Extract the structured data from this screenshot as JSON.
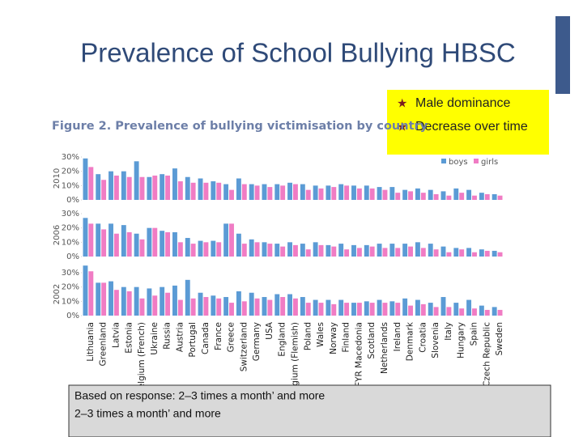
{
  "slide_title": "Prevalence of School Bullying HBSC",
  "bullets": [
    "Male dominance",
    "Decrease over time"
  ],
  "note_lines": [
    "Based on response: 2–3 times a month’ and more",
    "2–3 times a month’ and more"
  ],
  "chart_data": {
    "type": "bar",
    "title": "Figure 2. Prevalence of bullying victimisation by country",
    "categories": [
      "Lithuania",
      "Greenland",
      "Latvia",
      "Estonia",
      "elgium (French)",
      "Ukraine",
      "Russia",
      "Austria",
      "Portugal",
      "Canada",
      "France",
      "Greece",
      "Switzerland",
      "Germany",
      "USA",
      "England",
      "lgium (Flemish)",
      "Poland",
      "Wales",
      "Norway",
      "Finland",
      "TFYR Macedonia",
      "Scotland",
      "Netherlands",
      "Ireland",
      "Denmark",
      "Croatia",
      "Slovenia",
      "Italy",
      "Hungary",
      "Spain",
      "Czech Republic",
      "Sweden"
    ],
    "series": [
      {
        "name": "boys",
        "color": "#5b9bd5"
      },
      {
        "name": "girls",
        "color": "#f07cc4"
      }
    ],
    "ylim": [
      0,
      30
    ],
    "yticks": [
      {
        "value": 0,
        "label": "0%"
      },
      {
        "value": 10,
        "label": "10%"
      },
      {
        "value": 20,
        "label": "20%"
      },
      {
        "value": 30,
        "label": "30%"
      }
    ],
    "panels": [
      {
        "label": "2010",
        "values": [
          [
            29,
            18,
            20,
            20,
            27,
            16,
            18,
            22,
            16,
            15,
            13,
            11,
            15,
            11,
            11,
            11,
            12,
            11,
            10,
            10,
            11,
            10,
            10,
            9,
            9,
            7,
            8,
            7,
            6,
            8,
            7,
            5,
            4
          ],
          [
            23,
            14,
            17,
            16,
            16,
            17,
            17,
            13,
            12,
            12,
            12,
            7,
            11,
            10,
            9,
            10,
            11,
            7,
            8,
            9,
            10,
            8,
            8,
            7,
            5,
            6,
            5,
            4,
            3,
            5,
            3,
            4,
            3
          ]
        ]
      },
      {
        "label": "2006",
        "values": [
          [
            27,
            23,
            23,
            22,
            16,
            20,
            18,
            17,
            13,
            11,
            11,
            23,
            16,
            12,
            10,
            9,
            10,
            9,
            10,
            8,
            9,
            8,
            8,
            9,
            9,
            9,
            10,
            9,
            7,
            6,
            6,
            5,
            4
          ],
          [
            23,
            19,
            16,
            17,
            12,
            20,
            17,
            10,
            9,
            10,
            10,
            23,
            9,
            10,
            9,
            7,
            8,
            5,
            8,
            7,
            5,
            6,
            7,
            6,
            6,
            7,
            6,
            5,
            3,
            5,
            3,
            4,
            3
          ]
        ]
      },
      {
        "label": "2002",
        "values": [
          [
            35,
            23,
            24,
            20,
            20,
            19,
            20,
            21,
            25,
            16,
            14,
            13,
            17,
            16,
            13,
            15,
            15,
            13,
            11,
            11,
            11,
            9,
            10,
            11,
            10,
            12,
            11,
            9,
            13,
            9,
            11,
            7,
            6
          ],
          [
            31,
            23,
            18,
            17,
            12,
            14,
            16,
            11,
            12,
            13,
            12,
            9,
            10,
            12,
            11,
            13,
            12,
            9,
            9,
            8,
            9,
            9,
            9,
            9,
            9,
            7,
            8,
            6,
            6,
            5,
            5,
            4,
            4
          ]
        ]
      }
    ]
  }
}
